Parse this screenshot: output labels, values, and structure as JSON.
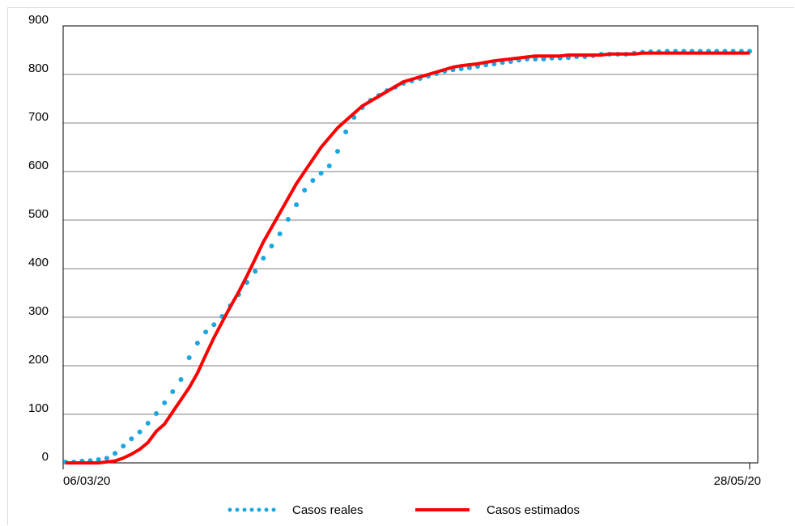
{
  "chart_data": {
    "type": "line",
    "title": "",
    "xlabel": "",
    "ylabel": "",
    "x_tick_labels": [
      "06/03/20",
      "28/05/20"
    ],
    "x_range": [
      "2020-03-06",
      "2020-05-28"
    ],
    "ylim": [
      0,
      900
    ],
    "y_ticks": [
      0,
      100,
      200,
      300,
      400,
      500,
      600,
      700,
      800,
      900
    ],
    "grid": "horizontal",
    "legend_position": "bottom",
    "series": [
      {
        "name": "Casos reales",
        "style": "dotted",
        "color": "#1aa7e0",
        "values": [
          0,
          0,
          2,
          3,
          5,
          8,
          18,
          33,
          48,
          62,
          80,
          100,
          122,
          145,
          170,
          215,
          245,
          268,
          283,
          300,
          322,
          345,
          370,
          393,
          420,
          445,
          470,
          500,
          530,
          560,
          580,
          595,
          610,
          640,
          680,
          710,
          730,
          745,
          755,
          765,
          772,
          780,
          785,
          790,
          795,
          800,
          805,
          808,
          810,
          812,
          815,
          818,
          820,
          823,
          825,
          828,
          830,
          830,
          830,
          832,
          832,
          833,
          835,
          835,
          837,
          840,
          840,
          840,
          840,
          842,
          844,
          845,
          845,
          846,
          846,
          846,
          846,
          846,
          846,
          846,
          846,
          846,
          846,
          846
        ]
      },
      {
        "name": "Casos estimados",
        "style": "solid",
        "color": "#ff0000",
        "values": [
          0,
          0,
          0,
          0,
          0,
          2,
          4,
          10,
          18,
          28,
          42,
          65,
          80,
          105,
          130,
          155,
          185,
          222,
          258,
          290,
          322,
          352,
          385,
          420,
          455,
          485,
          515,
          545,
          575,
          600,
          625,
          650,
          670,
          690,
          705,
          720,
          735,
          745,
          755,
          765,
          775,
          785,
          790,
          795,
          800,
          805,
          810,
          815,
          818,
          820,
          822,
          825,
          828,
          830,
          832,
          834,
          836,
          838,
          838,
          838,
          838,
          840,
          840,
          840,
          840,
          840,
          842,
          842,
          842,
          842,
          844,
          844,
          844,
          844,
          844,
          844,
          844,
          844,
          844,
          844,
          844,
          844,
          844,
          844
        ]
      }
    ]
  }
}
